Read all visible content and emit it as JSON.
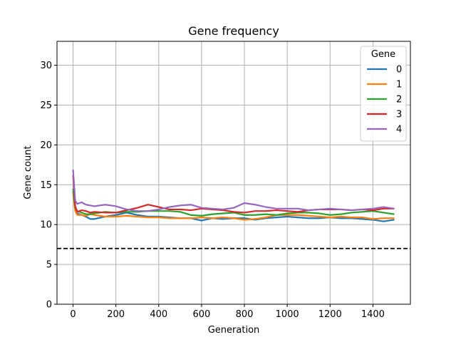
{
  "chart_data": {
    "type": "line",
    "title": "Gene frequency",
    "xlabel": "Generation",
    "ylabel": "Gene count",
    "xlim": [
      -75,
      1575
    ],
    "ylim": [
      0,
      33
    ],
    "xticks": [
      0,
      200,
      400,
      600,
      800,
      1000,
      1200,
      1400
    ],
    "yticks": [
      0,
      5,
      10,
      15,
      20,
      25,
      30
    ],
    "grid": true,
    "legend": {
      "title": "Gene",
      "placement": "top-right"
    },
    "reference_line": {
      "y": 7,
      "style": "dashed",
      "color": "#000000"
    },
    "x": [
      0,
      10,
      20,
      40,
      60,
      80,
      100,
      150,
      200,
      250,
      300,
      350,
      400,
      450,
      500,
      550,
      600,
      650,
      700,
      750,
      800,
      850,
      900,
      950,
      1000,
      1050,
      1100,
      1150,
      1200,
      1250,
      1300,
      1350,
      1400,
      1450,
      1500
    ],
    "series": [
      {
        "name": "0",
        "color": "#1f77b4",
        "values": [
          14.2,
          12.0,
          11.4,
          11.2,
          11.0,
          10.7,
          10.7,
          11.0,
          11.2,
          11.5,
          11.2,
          11.0,
          11.0,
          10.9,
          10.8,
          10.8,
          10.5,
          10.8,
          10.7,
          10.8,
          10.8,
          10.6,
          10.8,
          10.9,
          11.0,
          10.9,
          10.8,
          10.8,
          10.9,
          10.8,
          10.8,
          10.7,
          10.6,
          10.4,
          10.6
        ]
      },
      {
        "name": "1",
        "color": "#ff7f0e",
        "values": [
          14.0,
          11.7,
          11.2,
          11.2,
          11.1,
          11.3,
          11.2,
          11.0,
          11.0,
          11.1,
          11.0,
          10.9,
          10.9,
          10.8,
          10.8,
          10.8,
          10.9,
          10.8,
          10.9,
          10.8,
          10.6,
          10.7,
          10.9,
          11.2,
          11.2,
          11.2,
          11.1,
          11.0,
          10.9,
          11.0,
          10.9,
          10.9,
          10.7,
          10.8,
          10.8
        ]
      },
      {
        "name": "2",
        "color": "#2ca02c",
        "values": [
          14.5,
          12.1,
          11.7,
          11.5,
          11.3,
          11.3,
          11.4,
          11.6,
          11.5,
          11.6,
          11.6,
          11.7,
          11.7,
          11.7,
          11.6,
          11.2,
          11.1,
          11.3,
          11.4,
          11.5,
          11.2,
          11.2,
          11.3,
          11.2,
          11.4,
          11.5,
          11.5,
          11.4,
          11.2,
          11.3,
          11.5,
          11.6,
          11.7,
          11.5,
          11.3
        ]
      },
      {
        "name": "3",
        "color": "#d62728",
        "values": [
          16.2,
          12.3,
          11.6,
          11.8,
          11.7,
          11.5,
          11.6,
          11.5,
          11.5,
          11.8,
          12.1,
          12.5,
          12.2,
          11.9,
          11.9,
          11.8,
          12.0,
          11.9,
          11.8,
          11.6,
          11.5,
          11.7,
          11.7,
          11.8,
          11.7,
          11.6,
          11.8,
          11.9,
          11.9,
          11.9,
          11.8,
          11.9,
          11.8,
          12.0,
          12.0
        ]
      },
      {
        "name": "4",
        "color": "#9467bd",
        "values": [
          16.9,
          13.0,
          12.6,
          12.8,
          12.5,
          12.4,
          12.3,
          12.5,
          12.3,
          11.9,
          11.7,
          11.7,
          11.9,
          12.2,
          12.4,
          12.5,
          12.1,
          12.0,
          11.9,
          12.1,
          12.7,
          12.5,
          12.2,
          12.0,
          12.0,
          12.0,
          11.8,
          11.9,
          12.0,
          11.9,
          11.8,
          11.9,
          12.0,
          12.2,
          12.0
        ]
      }
    ]
  }
}
